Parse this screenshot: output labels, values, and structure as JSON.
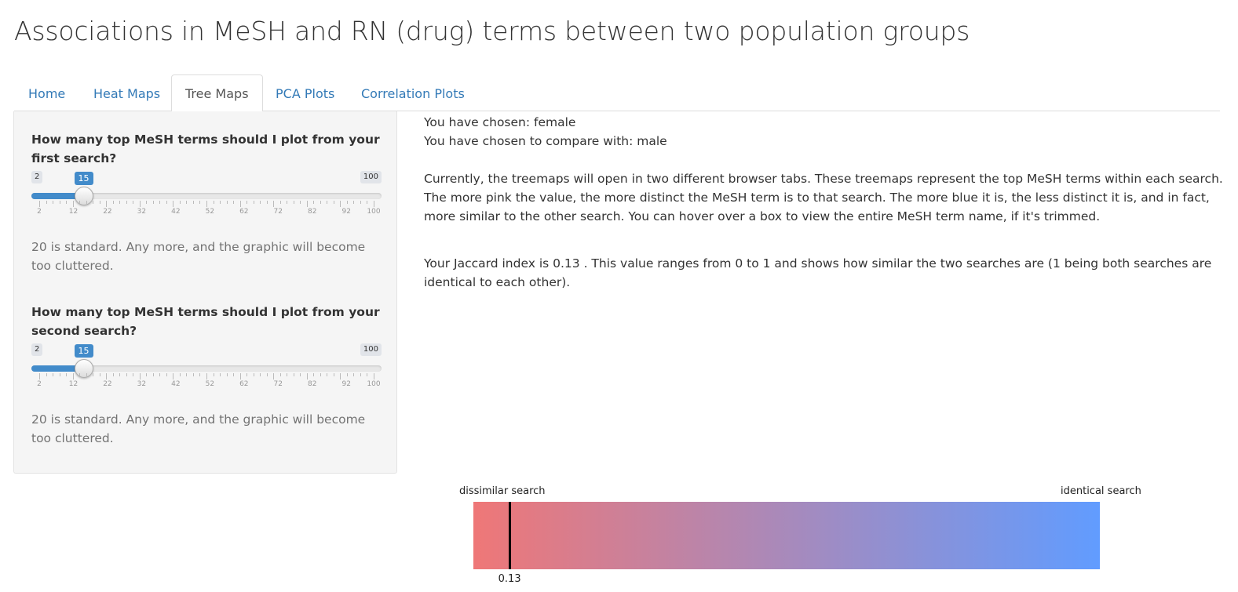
{
  "header": {
    "title": "Associations in MeSH and RN (drug) terms between two population groups"
  },
  "tabs": [
    {
      "label": "Home",
      "active": false
    },
    {
      "label": "Heat Maps",
      "active": false
    },
    {
      "label": "Tree Maps",
      "active": true
    },
    {
      "label": "PCA Plots",
      "active": false
    },
    {
      "label": "Correlation Plots",
      "active": false
    }
  ],
  "sidebar": {
    "slider1": {
      "question": "How many top MeSH terms should I plot from your first search?",
      "min": 2,
      "max": 100,
      "value": 15,
      "min_label": "2",
      "max_label": "100",
      "value_label": "15",
      "tick_labels": [
        "2",
        "12",
        "22",
        "32",
        "42",
        "52",
        "62",
        "72",
        "82",
        "92",
        "100"
      ],
      "help": "20 is standard. Any more, and the graphic will become too cluttered."
    },
    "slider2": {
      "question": "How many top MeSH terms should I plot from your second search?",
      "min": 2,
      "max": 100,
      "value": 15,
      "min_label": "2",
      "max_label": "100",
      "value_label": "15",
      "tick_labels": [
        "2",
        "12",
        "22",
        "32",
        "42",
        "52",
        "62",
        "72",
        "82",
        "92",
        "100"
      ],
      "help": "20 is standard. Any more, and the graphic will become too cluttered."
    }
  },
  "main": {
    "chosen": "You have chosen: female",
    "compare": "You have chosen to compare with: male",
    "description": "Currently, the treemaps will open in two different browser tabs. These treemaps represent the top MeSH terms within each search. The more pink the value, the more distinct the MeSH term is to that search. The more blue it is, the less distinct it is, and in fact, more similar to the other search. You can hover over a box to view the entire MeSH term name, if it's trimmed.",
    "jaccard_text": "Your Jaccard index is 0.13 . This value ranges from 0 to 1 and shows how similar the two searches are (1 being both searches are identical to each other)."
  },
  "gradient": {
    "left_label": "dissimilar search",
    "right_label": "identical search",
    "value": 0.13,
    "value_label": "0.13",
    "color_start": "#ef7777",
    "color_end": "#619cff"
  },
  "colors": {
    "accent": "#428bca",
    "link": "#337ab7"
  }
}
